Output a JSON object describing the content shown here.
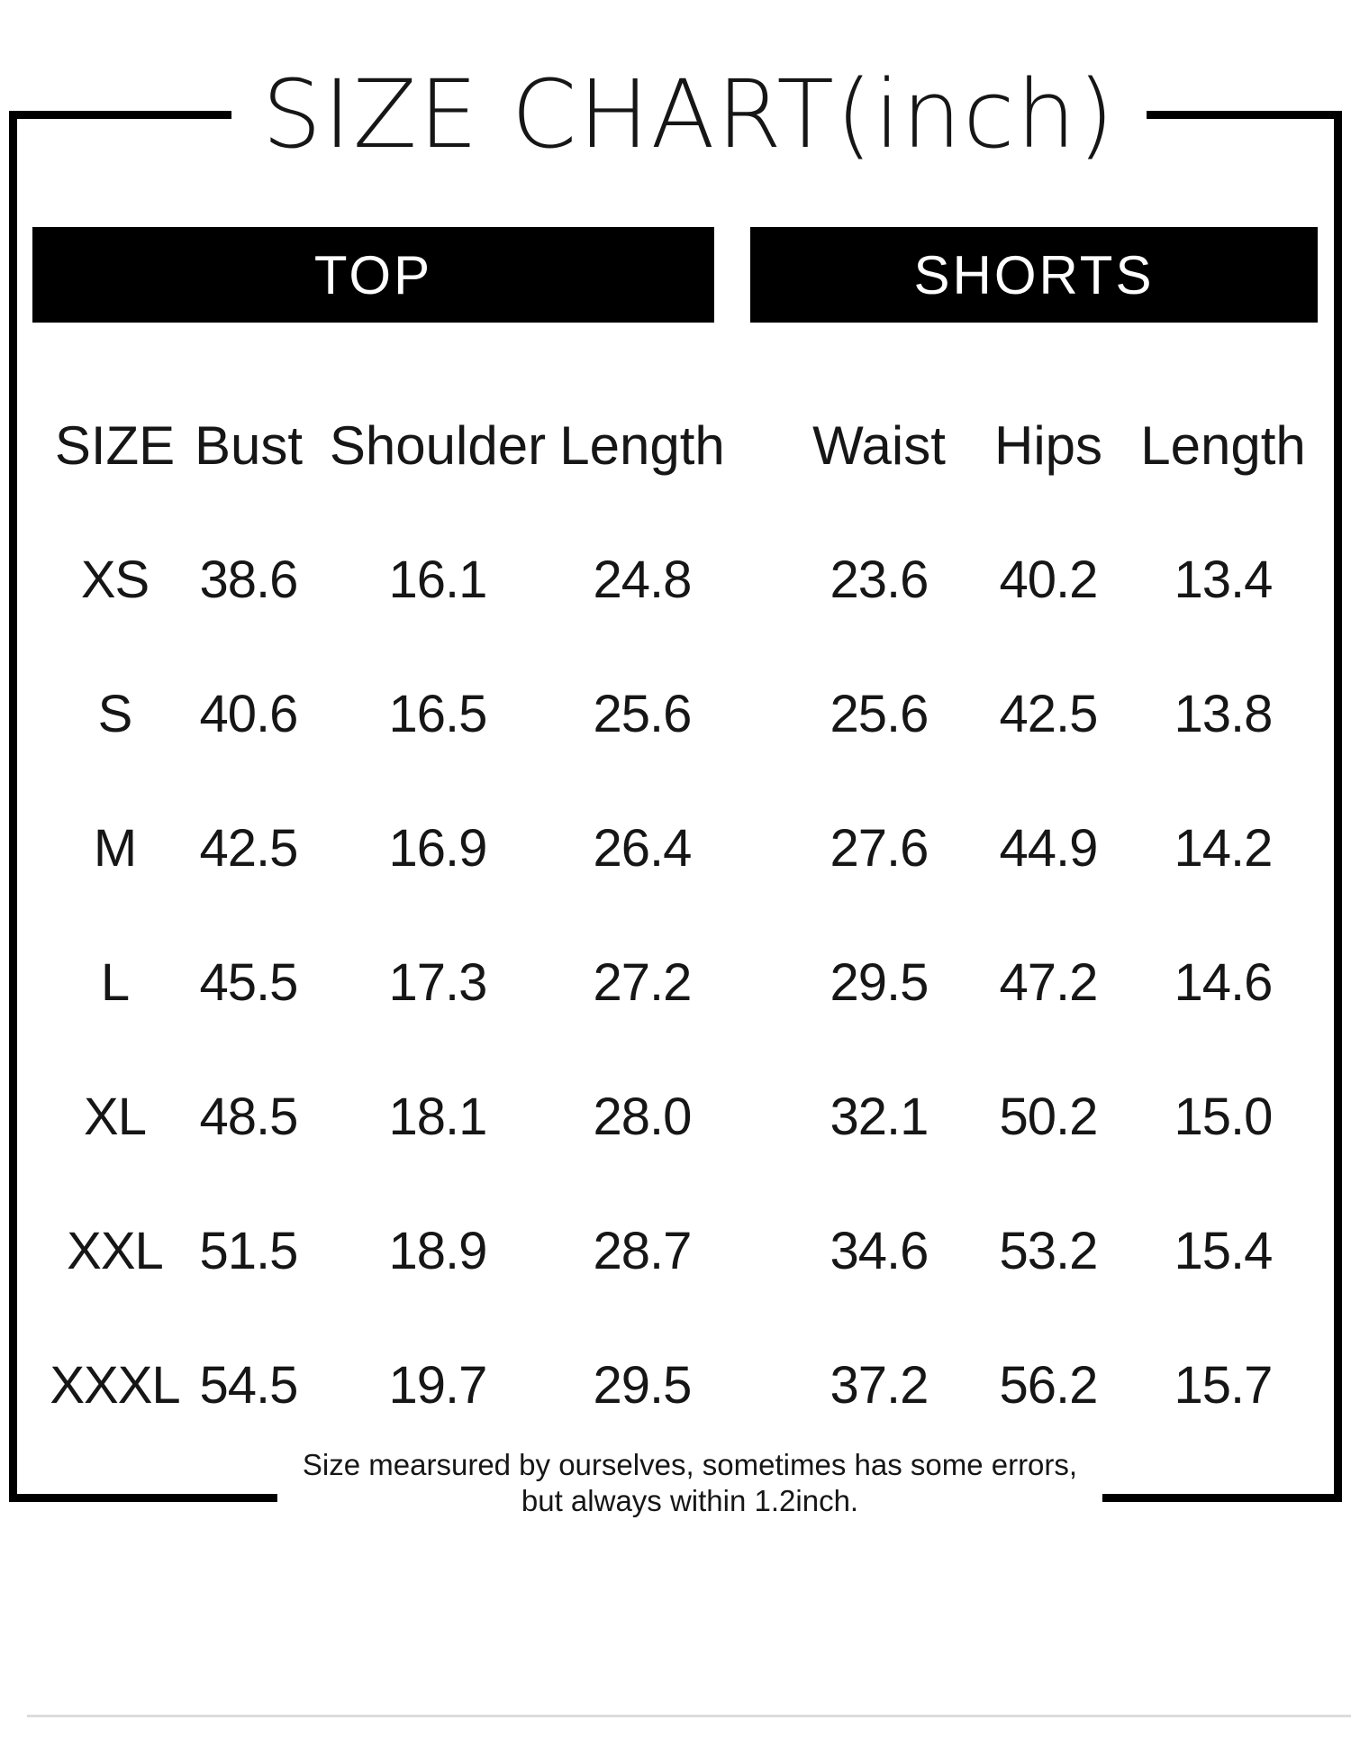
{
  "title": "SIZE CHART(inch)",
  "sections": {
    "top_label": "TOP",
    "shorts_label": "SHORTS"
  },
  "table": {
    "headers": [
      "SIZE",
      "Bust",
      "Shoulder",
      "Length",
      "Waist",
      "Hips",
      "Length"
    ],
    "rows": [
      {
        "values": [
          "XS",
          "38.6",
          "16.1",
          "24.8",
          "23.6",
          "40.2",
          "13.4"
        ]
      },
      {
        "values": [
          "S",
          "40.6",
          "16.5",
          "25.6",
          "25.6",
          "42.5",
          "13.8"
        ]
      },
      {
        "values": [
          "M",
          "42.5",
          "16.9",
          "26.4",
          "27.6",
          "44.9",
          "14.2"
        ]
      },
      {
        "values": [
          "L",
          "45.5",
          "17.3",
          "27.2",
          "29.5",
          "47.2",
          "14.6"
        ]
      },
      {
        "values": [
          "XL",
          "48.5",
          "18.1",
          "28.0",
          "32.1",
          "50.2",
          "15.0"
        ]
      },
      {
        "values": [
          "XXL",
          "51.5",
          "18.9",
          "28.7",
          "34.6",
          "53.2",
          "15.4"
        ]
      },
      {
        "values": [
          "XXXL",
          "54.5",
          "19.7",
          "29.5",
          "37.2",
          "56.2",
          "15.7"
        ]
      }
    ]
  },
  "footer": {
    "line1": "Size mearsured by ourselves, sometimes has some errors,",
    "line2": "but always within 1.2inch."
  },
  "colors": {
    "frame": "#000000",
    "bar_background": "#000000",
    "bar_text": "#ffffff",
    "text": "#161616",
    "divider": "#dcdcdc"
  },
  "chart_data": {
    "type": "table",
    "title": "SIZE CHART(inch)",
    "groups": [
      {
        "name": "TOP",
        "columns": [
          "Bust",
          "Shoulder",
          "Length"
        ]
      },
      {
        "name": "SHORTS",
        "columns": [
          "Waist",
          "Hips",
          "Length"
        ]
      }
    ],
    "row_header": "SIZE",
    "sizes": [
      "XS",
      "S",
      "M",
      "L",
      "XL",
      "XXL",
      "XXXL"
    ],
    "top": {
      "Bust": [
        38.6,
        40.6,
        42.5,
        45.5,
        48.5,
        51.5,
        54.5
      ],
      "Shoulder": [
        16.1,
        16.5,
        16.9,
        17.3,
        18.1,
        18.9,
        19.7
      ],
      "Length": [
        24.8,
        25.6,
        26.4,
        27.2,
        28.0,
        28.7,
        29.5
      ]
    },
    "shorts": {
      "Waist": [
        23.6,
        25.6,
        27.6,
        29.5,
        32.1,
        34.6,
        37.2
      ],
      "Hips": [
        40.2,
        42.5,
        44.9,
        47.2,
        50.2,
        53.2,
        56.2
      ],
      "Length": [
        13.4,
        13.8,
        14.2,
        14.6,
        15.0,
        15.4,
        15.7
      ]
    },
    "unit": "inch",
    "note": "Size mearsured by ourselves, sometimes has some errors, but always within 1.2inch."
  }
}
